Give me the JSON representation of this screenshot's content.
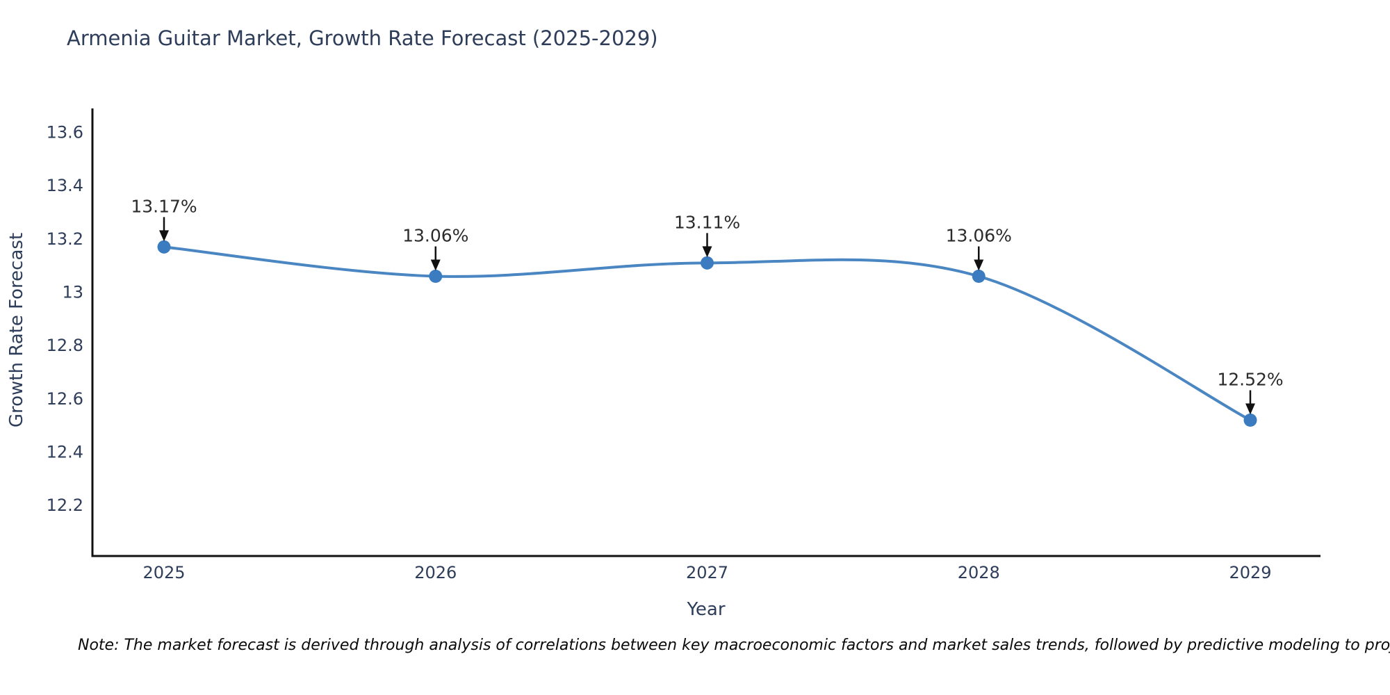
{
  "title": "Armenia Guitar Market, Growth Rate Forecast (2025-2029)",
  "note": "Note: The market forecast is derived through analysis of correlations between key macroeconomic factors and market sales trends, followed by predictive modeling to project future sal",
  "chart_data": {
    "type": "line",
    "title": "Armenia Guitar Market, Growth Rate Forecast (2025-2029)",
    "xlabel": "Year",
    "ylabel": "Growth Rate Forecast",
    "categories": [
      "2025",
      "2026",
      "2027",
      "2028",
      "2029"
    ],
    "series": [
      {
        "name": "Growth Rate Forecast",
        "values": [
          13.17,
          13.06,
          13.11,
          13.06,
          12.52
        ]
      }
    ],
    "point_labels": [
      "13.17%",
      "13.06%",
      "13.11%",
      "13.06%",
      "12.52%"
    ],
    "y_ticks": [
      "13.6",
      "13.4",
      "13.2",
      "13",
      "12.8",
      "12.6",
      "12.4",
      "12.2"
    ],
    "ylim": [
      12.01,
      13.69
    ],
    "grid": false,
    "legend": false,
    "curve": "spline",
    "markers": true,
    "colors": {
      "line": "#4a86c2",
      "marker": "#3b7cc0",
      "axis": "#111111",
      "tick_label": "#2e3d59",
      "annotation_text": "#2b2b2b",
      "annotation_arrow": "#111111"
    }
  }
}
